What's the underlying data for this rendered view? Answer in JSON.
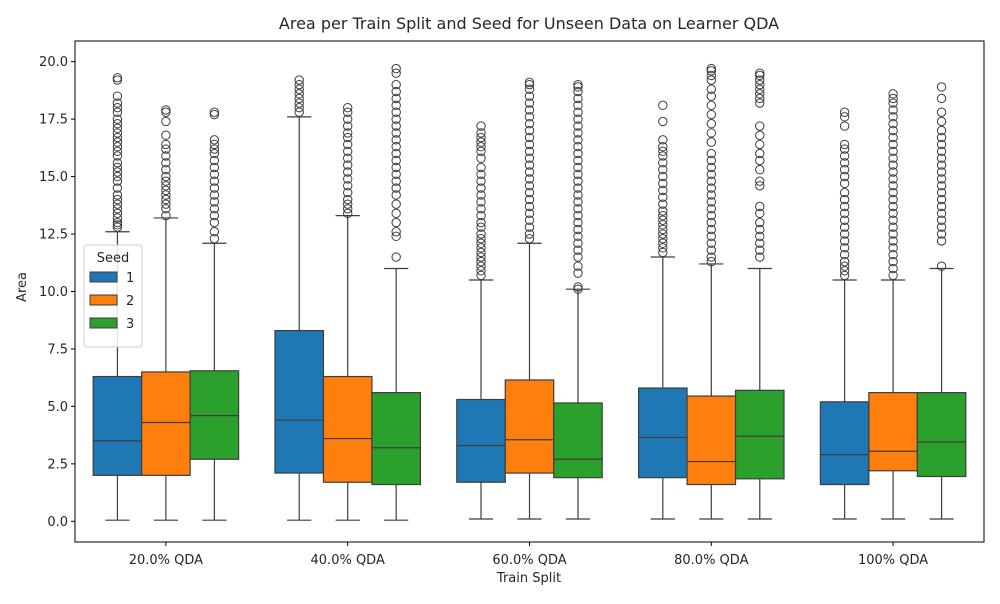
{
  "chart_data": {
    "type": "boxplot",
    "title": "Area per Train Split and Seed for Unseen Data on Learner QDA",
    "xlabel": "Train Split",
    "ylabel": "Area",
    "ylim": [
      -0.9,
      20.9
    ],
    "yticks": [
      0.0,
      2.5,
      5.0,
      7.5,
      10.0,
      12.5,
      15.0,
      17.5,
      20.0
    ],
    "ytick_labels": [
      "0.0",
      "2.5",
      "5.0",
      "7.5",
      "10.0",
      "12.5",
      "15.0",
      "17.5",
      "20.0"
    ],
    "categories": [
      "20.0% QDA",
      "40.0% QDA",
      "60.0% QDA",
      "80.0% QDA",
      "100% QDA"
    ],
    "grid": false,
    "legend": {
      "title": "Seed",
      "placement": "center-left"
    },
    "series": [
      {
        "name": "1",
        "color": "#1f77b4",
        "boxes": [
          {
            "min": 0.05,
            "q1": 2.0,
            "median": 3.5,
            "q3": 6.3,
            "max": 12.6,
            "outliers": [
              12.8,
              12.9,
              13.0,
              13.2,
              13.4,
              13.6,
              13.8,
              14.0,
              14.2,
              14.5,
              14.8,
              15.0,
              15.2,
              15.4,
              15.6,
              15.9,
              16.1,
              16.3,
              16.5,
              16.7,
              16.9,
              17.1,
              17.3,
              17.5,
              17.8,
              18.0,
              18.2,
              18.5,
              19.2,
              19.3
            ]
          },
          {
            "min": 0.05,
            "q1": 2.1,
            "median": 4.4,
            "q3": 8.3,
            "max": 17.6,
            "outliers": [
              17.8,
              18.0,
              18.2,
              18.4,
              18.6,
              18.8,
              19.0,
              19.2
            ]
          },
          {
            "min": 0.1,
            "q1": 1.7,
            "median": 3.3,
            "q3": 5.3,
            "max": 10.5,
            "outliers": [
              10.7,
              10.9,
              11.1,
              11.3,
              11.5,
              11.7,
              11.9,
              12.1,
              12.3,
              12.5,
              12.8,
              13.0,
              13.3,
              13.6,
              13.9,
              14.2,
              14.5,
              14.8,
              15.1,
              15.4,
              15.8,
              16.1,
              16.3,
              16.5,
              16.7,
              16.9,
              17.2
            ]
          },
          {
            "min": 0.1,
            "q1": 1.9,
            "median": 3.65,
            "q3": 5.8,
            "max": 11.5,
            "outliers": [
              11.7,
              11.9,
              12.1,
              12.3,
              12.5,
              12.7,
              12.9,
              13.1,
              13.3,
              13.5,
              13.8,
              14.1,
              14.4,
              14.7,
              15.0,
              15.3,
              15.6,
              15.9,
              16.1,
              16.3,
              16.6,
              17.4,
              18.1
            ]
          },
          {
            "min": 0.1,
            "q1": 1.6,
            "median": 2.9,
            "q3": 5.2,
            "max": 10.5,
            "outliers": [
              10.7,
              10.9,
              11.1,
              11.3,
              11.6,
              11.9,
              12.2,
              12.5,
              12.8,
              13.1,
              13.4,
              13.7,
              14.0,
              14.3,
              14.7,
              15.0,
              15.3,
              15.6,
              15.9,
              16.2,
              16.4,
              17.2,
              17.6,
              17.8
            ]
          }
        ]
      },
      {
        "name": "2",
        "color": "#ff7f0e",
        "boxes": [
          {
            "min": 0.05,
            "q1": 2.0,
            "median": 4.3,
            "q3": 6.5,
            "max": 13.2,
            "outliers": [
              13.3,
              13.6,
              13.8,
              14.0,
              14.2,
              14.4,
              14.6,
              14.8,
              15.0,
              15.3,
              15.6,
              15.9,
              16.2,
              16.4,
              16.8,
              17.4,
              17.8,
              17.9
            ]
          },
          {
            "min": 0.05,
            "q1": 1.7,
            "median": 3.6,
            "q3": 6.3,
            "max": 13.3,
            "outliers": [
              13.4,
              13.6,
              13.8,
              14.0,
              14.3,
              14.6,
              14.9,
              15.2,
              15.5,
              15.8,
              16.1,
              16.4,
              16.7,
              16.9,
              17.2,
              17.5,
              17.8,
              18.0
            ]
          },
          {
            "min": 0.1,
            "q1": 2.1,
            "median": 3.55,
            "q3": 6.15,
            "max": 12.1,
            "outliers": [
              12.3,
              12.5,
              12.8,
              13.1,
              13.4,
              13.7,
              14.0,
              14.3,
              14.6,
              14.9,
              15.2,
              15.5,
              15.8,
              16.1,
              16.4,
              16.7,
              17.0,
              17.3,
              17.6,
              17.9,
              18.2,
              18.5,
              18.8,
              19.0,
              19.1
            ]
          },
          {
            "min": 0.1,
            "q1": 1.6,
            "median": 2.6,
            "q3": 5.45,
            "max": 11.2,
            "outliers": [
              11.3,
              11.5,
              11.8,
              12.1,
              12.4,
              12.7,
              13.0,
              13.3,
              13.6,
              13.9,
              14.2,
              14.5,
              14.8,
              15.1,
              15.4,
              15.7,
              16.0,
              16.5,
              16.9,
              17.3,
              17.7,
              18.1,
              18.5,
              18.8,
              19.2,
              19.4,
              19.6,
              19.7
            ]
          },
          {
            "min": 0.1,
            "q1": 2.2,
            "median": 3.05,
            "q3": 5.6,
            "max": 10.5,
            "outliers": [
              10.7,
              11.0,
              11.3,
              11.6,
              11.9,
              12.2,
              12.5,
              12.8,
              13.1,
              13.4,
              13.7,
              14.0,
              14.3,
              14.6,
              14.9,
              15.2,
              15.5,
              15.8,
              16.1,
              16.4,
              16.7,
              17.0,
              17.3,
              17.6,
              17.9,
              18.2,
              18.4,
              18.6
            ]
          }
        ]
      },
      {
        "name": "3",
        "color": "#2ca02c",
        "boxes": [
          {
            "min": 0.05,
            "q1": 2.7,
            "median": 4.6,
            "q3": 6.55,
            "max": 12.1,
            "outliers": [
              12.3,
              12.6,
              13.0,
              13.3,
              13.6,
              13.9,
              14.2,
              14.5,
              14.8,
              15.1,
              15.4,
              15.7,
              16.0,
              16.2,
              16.4,
              16.6,
              17.7,
              17.8
            ]
          },
          {
            "min": 0.05,
            "q1": 1.6,
            "median": 3.2,
            "q3": 5.6,
            "max": 11.0,
            "outliers": [
              11.5,
              12.4,
              12.6,
              13.0,
              13.4,
              13.8,
              14.2,
              14.5,
              14.8,
              15.1,
              15.4,
              15.7,
              16.0,
              16.3,
              16.6,
              16.9,
              17.2,
              17.5,
              17.8,
              18.1,
              18.4,
              18.7,
              19.0,
              19.5,
              19.7
            ]
          },
          {
            "min": 0.1,
            "q1": 1.9,
            "median": 2.7,
            "q3": 5.15,
            "max": 10.1,
            "outliers": [
              10.1,
              10.2,
              10.8,
              11.1,
              11.5,
              11.8,
              12.1,
              12.4,
              12.7,
              13.0,
              13.3,
              13.6,
              13.9,
              14.2,
              14.5,
              14.8,
              15.1,
              15.4,
              15.7,
              16.0,
              16.3,
              16.6,
              16.9,
              17.2,
              17.5,
              17.8,
              18.1,
              18.4,
              18.7,
              18.9,
              19.0
            ]
          },
          {
            "min": 0.1,
            "q1": 1.85,
            "median": 3.7,
            "q3": 5.7,
            "max": 11.0,
            "outliers": [
              11.5,
              11.8,
              12.1,
              12.4,
              12.7,
              13.0,
              13.4,
              13.7,
              14.6,
              14.8,
              15.3,
              15.7,
              16.0,
              16.4,
              16.8,
              17.2,
              18.2,
              18.4,
              18.6,
              18.8,
              19.0,
              19.2,
              19.4,
              19.5
            ]
          },
          {
            "min": 0.1,
            "q1": 1.95,
            "median": 3.45,
            "q3": 5.6,
            "max": 11.0,
            "outliers": [
              11.1,
              12.2,
              12.5,
              12.8,
              13.1,
              13.4,
              13.7,
              14.0,
              14.3,
              14.6,
              14.9,
              15.2,
              15.5,
              15.8,
              16.1,
              16.4,
              16.7,
              17.0,
              17.4,
              17.8,
              18.4,
              18.9
            ]
          }
        ]
      }
    ]
  }
}
